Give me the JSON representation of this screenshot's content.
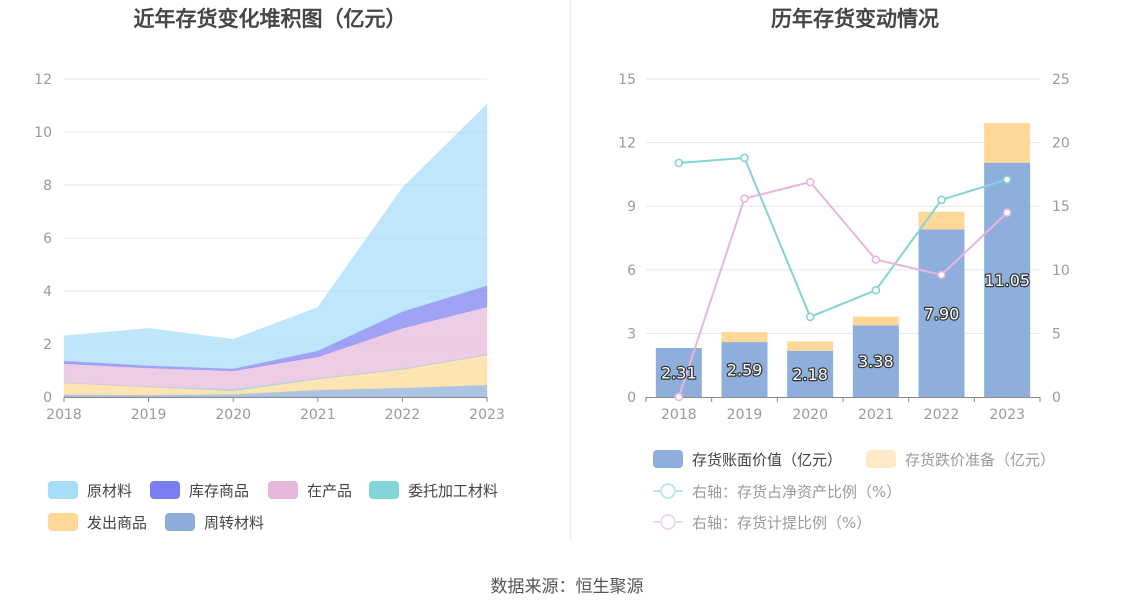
{
  "source": "数据来源：恒生聚源",
  "chart_data": [
    {
      "type": "area",
      "stacked": true,
      "title": "近年存货变化堆积图（亿元）",
      "x": [
        "2018",
        "2019",
        "2020",
        "2021",
        "2022",
        "2023"
      ],
      "ylim": [
        0,
        12
      ],
      "yticks": [
        0,
        2,
        4,
        6,
        8,
        10,
        12
      ],
      "grid": true,
      "legend_position": "bottom",
      "series": [
        {
          "name": "原材料",
          "color": "#a6dcf8",
          "values": [
            0.95,
            1.41,
            1.12,
            1.64,
            4.68,
            6.85
          ]
        },
        {
          "name": "库存商品",
          "color": "#7b7ef3",
          "values": [
            0.1,
            0.08,
            0.07,
            0.22,
            0.62,
            0.8
          ]
        },
        {
          "name": "在产品",
          "color": "#e6b8db",
          "values": [
            0.72,
            0.71,
            0.7,
            0.82,
            1.54,
            1.8
          ]
        },
        {
          "name": "委托加工材料",
          "color": "#84d4d8",
          "values": [
            0.01,
            0.01,
            0.06,
            0.02,
            0.02,
            0.02
          ]
        },
        {
          "name": "发出商品",
          "color": "#fdd896",
          "values": [
            0.45,
            0.31,
            0.13,
            0.42,
            0.7,
            1.13
          ]
        },
        {
          "name": "周转材料",
          "color": "#8badd8",
          "values": [
            0.08,
            0.07,
            0.1,
            0.26,
            0.34,
            0.45
          ]
        }
      ]
    },
    {
      "type": "bar",
      "title": "历年存货变动情况",
      "categories": [
        "2018",
        "2019",
        "2020",
        "2021",
        "2022",
        "2023"
      ],
      "ylim": [
        0,
        15
      ],
      "yticks": [
        0,
        3,
        6,
        9,
        12,
        15
      ],
      "y2lim": [
        0,
        25
      ],
      "y2ticks": [
        0,
        5,
        10,
        15,
        20,
        25
      ],
      "grid": true,
      "legend_position": "bottom",
      "series": [
        {
          "name": "存货账面价值（亿元）",
          "type": "bar",
          "axis": "left",
          "stack": "inventory",
          "color": "#8eaedc",
          "values": [
            2.31,
            2.59,
            2.18,
            3.38,
            7.9,
            11.05
          ],
          "show_labels": true
        },
        {
          "name": "存货跌价准备（亿元）",
          "type": "bar",
          "axis": "left",
          "stack": "inventory",
          "color": "#fdd898",
          "values": [
            0,
            0.48,
            0.44,
            0.41,
            0.84,
            1.87
          ]
        },
        {
          "name": "右轴：存货占净资产比例（%）",
          "type": "line",
          "axis": "right",
          "color": "#86d3d6",
          "values": [
            18.4,
            18.8,
            6.3,
            8.4,
            15.5,
            17.1
          ]
        },
        {
          "name": "右轴：存货计提比例（%）",
          "type": "line",
          "axis": "right",
          "color": "#e8b6db",
          "values": [
            0,
            15.6,
            16.9,
            10.8,
            9.6,
            14.5
          ]
        }
      ]
    }
  ]
}
